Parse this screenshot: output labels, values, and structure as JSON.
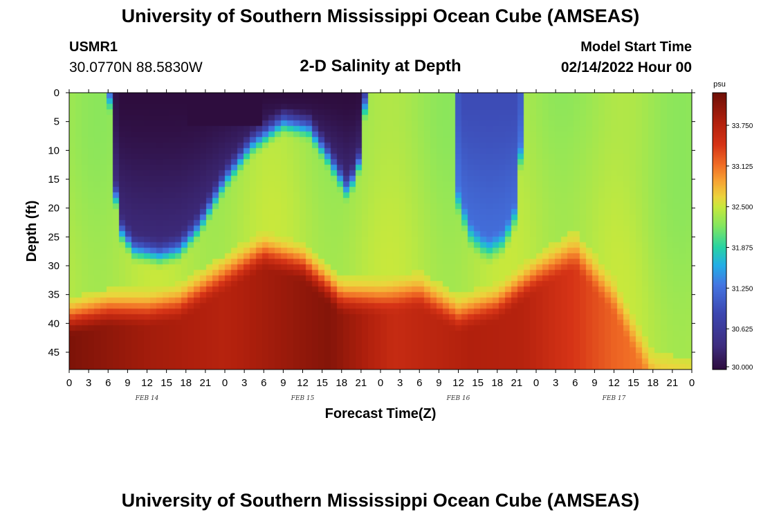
{
  "header": {
    "title": "University of Southern Mississippi Ocean Cube (AMSEAS)",
    "station": "USMR1",
    "coordinates": "30.0770N  88.5830W",
    "subtitle": "2-D Salinity at Depth",
    "model_start_label": "Model Start Time",
    "model_start_value": "02/14/2022 Hour 00"
  },
  "footer": {
    "title": "University of Southern Mississippi Ocean Cube (AMSEAS)"
  },
  "chart_data": {
    "type": "heatmap",
    "title": "2-D Salinity at Depth",
    "xlabel": "Forecast Time(Z)",
    "ylabel": "Depth (ft)",
    "x_range_hours": [
      0,
      96
    ],
    "y_range_ft": [
      0,
      48
    ],
    "x_tick_labels": [
      "0",
      "3",
      "6",
      "9",
      "12",
      "15",
      "18",
      "21",
      "0",
      "3",
      "6",
      "9",
      "12",
      "15",
      "18",
      "21",
      "0",
      "3",
      "6",
      "9",
      "12",
      "15",
      "18",
      "21",
      "0",
      "3",
      "6",
      "9",
      "12",
      "15",
      "18",
      "21",
      "0"
    ],
    "date_labels": [
      {
        "label": "FEB 14",
        "hour": 12
      },
      {
        "label": "FEB 15",
        "hour": 36
      },
      {
        "label": "FEB 16",
        "hour": 60
      },
      {
        "label": "FEB 17",
        "hour": 84
      }
    ],
    "y_ticks": [
      0,
      5,
      10,
      15,
      20,
      25,
      30,
      35,
      40,
      45
    ],
    "colorbar": {
      "unit": "psu",
      "min": 30.0,
      "max": 34.25,
      "tick_labels": [
        "30.000",
        "30.625",
        "31.250",
        "31.875",
        "32.500",
        "33.125",
        "33.750"
      ],
      "tick_values": [
        30.0,
        30.625,
        31.25,
        31.875,
        32.5,
        33.125,
        33.75
      ]
    },
    "color_stops": [
      {
        "value": 30.0,
        "color": "#2e0d3e"
      },
      {
        "value": 30.35,
        "color": "#3d2c7e"
      },
      {
        "value": 30.85,
        "color": "#3c46b0"
      },
      {
        "value": 31.3,
        "color": "#4476e2"
      },
      {
        "value": 31.6,
        "color": "#23aee6"
      },
      {
        "value": 31.875,
        "color": "#27d3a4"
      },
      {
        "value": 32.2,
        "color": "#82e660"
      },
      {
        "value": 32.5,
        "color": "#c8e83c"
      },
      {
        "value": 32.65,
        "color": "#ecd43c"
      },
      {
        "value": 32.9,
        "color": "#f7a233"
      },
      {
        "value": 33.15,
        "color": "#f06c25"
      },
      {
        "value": 33.45,
        "color": "#d63416"
      },
      {
        "value": 33.8,
        "color": "#b1200d"
      },
      {
        "value": 34.25,
        "color": "#6e0f07"
      }
    ],
    "transition_depth_ft": [
      {
        "hour": 0,
        "depth": 35.5
      },
      {
        "hour": 6,
        "depth": 34
      },
      {
        "hour": 12,
        "depth": 34
      },
      {
        "hour": 17,
        "depth": 33
      },
      {
        "hour": 24,
        "depth": 28
      },
      {
        "hour": 30,
        "depth": 24
      },
      {
        "hour": 36,
        "depth": 26
      },
      {
        "hour": 42,
        "depth": 32
      },
      {
        "hour": 48,
        "depth": 32
      },
      {
        "hour": 54,
        "depth": 31
      },
      {
        "hour": 60,
        "depth": 35
      },
      {
        "hour": 66,
        "depth": 33
      },
      {
        "hour": 72,
        "depth": 28
      },
      {
        "hour": 78,
        "depth": 24
      },
      {
        "hour": 84,
        "depth": 32
      },
      {
        "hour": 90,
        "depth": 45
      },
      {
        "hour": 96,
        "depth": 46
      }
    ],
    "bottom_salinity_psu": [
      {
        "hour": 0,
        "value": 34.15
      },
      {
        "hour": 12,
        "value": 33.9
      },
      {
        "hour": 24,
        "value": 33.75
      },
      {
        "hour": 40,
        "value": 34.1
      },
      {
        "hour": 50,
        "value": 33.6
      },
      {
        "hour": 62,
        "value": 33.8
      },
      {
        "hour": 70,
        "value": 33.75
      },
      {
        "hour": 84,
        "value": 33.2
      },
      {
        "hour": 96,
        "value": 32.9
      }
    ],
    "fresh_columns": [
      {
        "hour_start": 6,
        "hour_end": 46,
        "bottom_shape": [
          {
            "hour": 6,
            "depth": 0
          },
          {
            "hour": 7.5,
            "depth": 26
          },
          {
            "hour": 10,
            "depth": 30
          },
          {
            "hour": 14,
            "depth": 31
          },
          {
            "hour": 17,
            "depth": 30
          },
          {
            "hour": 20,
            "depth": 26
          },
          {
            "hour": 24,
            "depth": 18
          },
          {
            "hour": 28,
            "depth": 12
          },
          {
            "hour": 33,
            "depth": 8
          },
          {
            "hour": 37,
            "depth": 9
          },
          {
            "hour": 40,
            "depth": 14
          },
          {
            "hour": 43,
            "depth": 20
          },
          {
            "hour": 45,
            "depth": 14
          },
          {
            "hour": 46,
            "depth": 0
          }
        ],
        "min_value": 30.0
      },
      {
        "hour_start": 59,
        "hour_end": 70.5,
        "bottom_shape": [
          {
            "hour": 59,
            "depth": 0
          },
          {
            "hour": 60,
            "depth": 22
          },
          {
            "hour": 62,
            "depth": 28
          },
          {
            "hour": 64.5,
            "depth": 30.5
          },
          {
            "hour": 67,
            "depth": 29
          },
          {
            "hour": 69,
            "depth": 24
          },
          {
            "hour": 70.5,
            "depth": 0
          }
        ],
        "min_value": 30.9
      }
    ]
  }
}
